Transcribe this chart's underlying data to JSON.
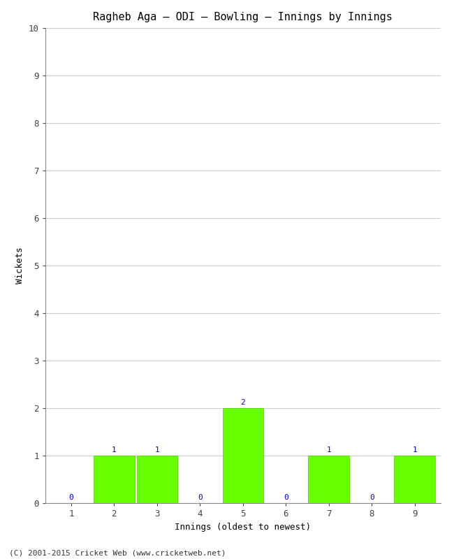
{
  "title": "Ragheb Aga – ODI – Bowling – Innings by Innings",
  "xlabel": "Innings (oldest to newest)",
  "ylabel": "Wickets",
  "categories": [
    "1",
    "2",
    "3",
    "4",
    "5",
    "6",
    "7",
    "8",
    "9"
  ],
  "values": [
    0,
    1,
    1,
    0,
    2,
    0,
    1,
    0,
    1
  ],
  "bar_color": "#66ff00",
  "bar_edge_color": "#55cc00",
  "label_color": "#0000cc",
  "ylim": [
    0,
    10
  ],
  "yticks": [
    0,
    1,
    2,
    3,
    4,
    5,
    6,
    7,
    8,
    9,
    10
  ],
  "background_color": "#ffffff",
  "plot_background": "#ffffff",
  "title_fontsize": 11,
  "axis_label_fontsize": 9,
  "tick_fontsize": 9,
  "value_label_fontsize": 8,
  "footer": "(C) 2001-2015 Cricket Web (www.cricketweb.net)"
}
